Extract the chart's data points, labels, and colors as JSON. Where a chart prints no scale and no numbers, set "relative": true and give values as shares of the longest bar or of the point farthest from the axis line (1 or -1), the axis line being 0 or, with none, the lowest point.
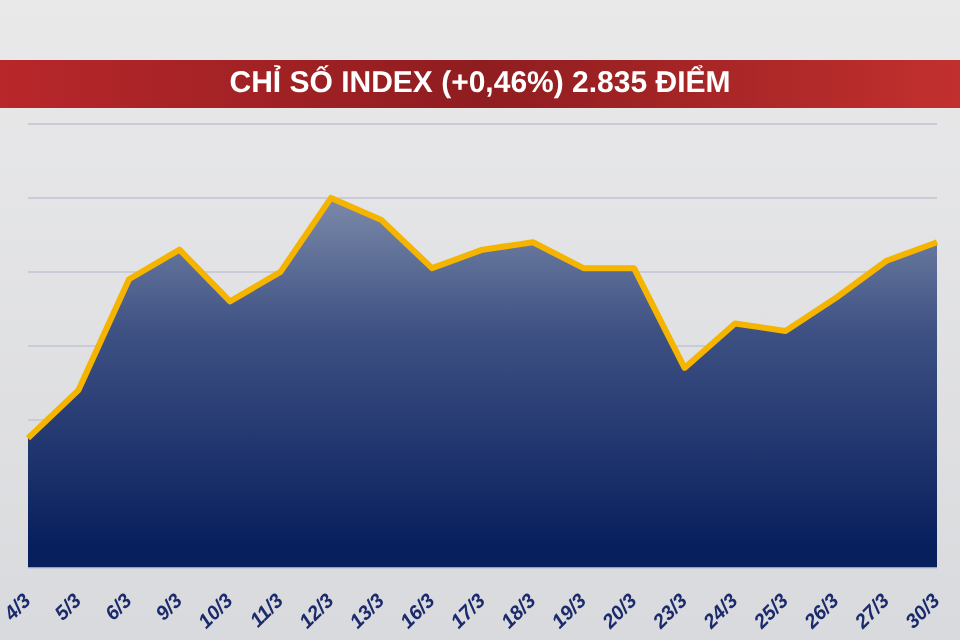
{
  "chart_data": {
    "type": "area",
    "title": "CHỈ SỐ INDEX (+0,46%) 2.835 ĐIỂM",
    "relative": true,
    "grid": "y",
    "color": "#f5b400",
    "categories": [
      "4/3",
      "5/3",
      "6/3",
      "9/3",
      "10/3",
      "11/3",
      "12/3",
      "13/3",
      "16/3",
      "17/3",
      "18/3",
      "19/3",
      "20/3",
      "23/3",
      "24/3",
      "25/3",
      "26/3",
      "27/3",
      "30/3"
    ],
    "values": [
      0.35,
      0.48,
      0.78,
      0.86,
      0.72,
      0.8,
      1,
      0.94,
      0.81,
      0.86,
      0.88,
      0.81,
      0.81,
      0.54,
      0.66,
      0.64,
      0.73,
      0.83,
      0.88
    ]
  }
}
